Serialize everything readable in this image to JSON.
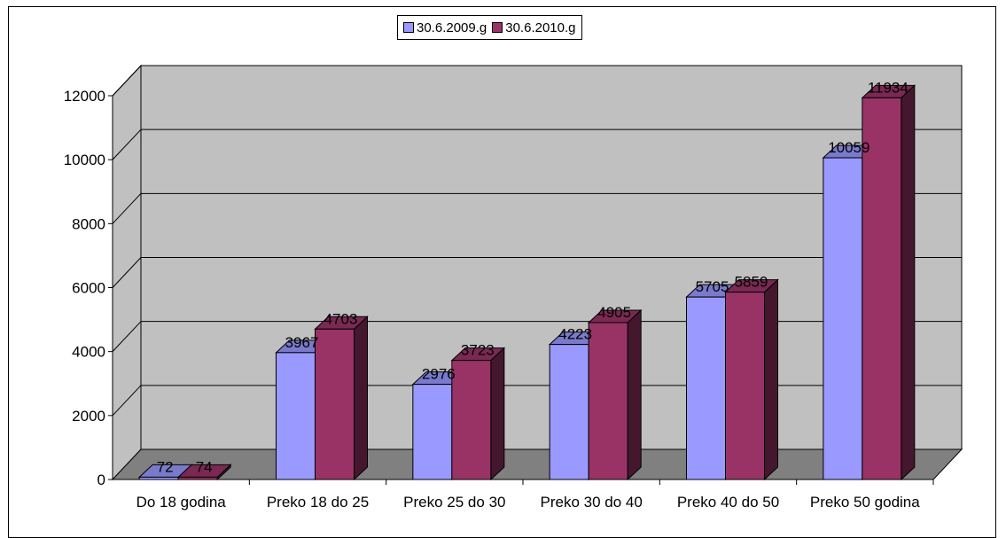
{
  "chart_data": {
    "type": "bar",
    "categories": [
      "Do 18 godina",
      "Preko 18 do 25",
      "Preko 25 do 30",
      "Preko 30 do 40",
      "Preko 40 do 50",
      "Preko 50 godina"
    ],
    "series": [
      {
        "name": "30.6.2009.g",
        "values": [
          72,
          3967,
          2976,
          4223,
          5705,
          10059
        ],
        "color": "#9999ff"
      },
      {
        "name": "30.6.2010.g",
        "values": [
          74,
          4703,
          3723,
          4905,
          5859,
          11934
        ],
        "color": "#993366"
      }
    ],
    "ylim": [
      0,
      12000
    ],
    "yticks": [
      0,
      2000,
      4000,
      6000,
      8000,
      10000,
      12000
    ],
    "grid": true,
    "legend_position": "top-center",
    "style": "3d-clustered-column",
    "wall_color": "#c0c0c0",
    "floor_color": "#808080"
  }
}
